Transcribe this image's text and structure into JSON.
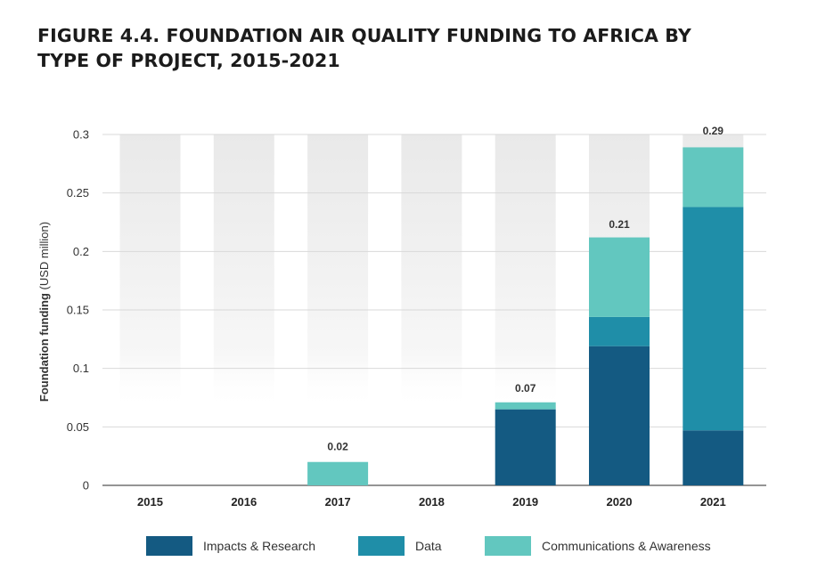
{
  "title": "FIGURE 4.4.  FOUNDATION AIR QUALITY FUNDING TO AFRICA BY TYPE OF PROJECT, 2015-2021",
  "colors": {
    "impacts": "#145a82",
    "data": "#1f8ea8",
    "communications": "#62c7bf",
    "grid": "#d9d9d9",
    "background_band": "#efefef"
  },
  "chart_data": {
    "type": "bar",
    "stacked": true,
    "title": "FIGURE 4.4.  FOUNDATION AIR QUALITY FUNDING TO AFRICA BY TYPE OF PROJECT, 2015-2021",
    "ylabel_bold": "Foundation funding",
    "ylabel_unit": "(USD million)",
    "xlabel": "",
    "categories": [
      "2015",
      "2016",
      "2017",
      "2018",
      "2019",
      "2020",
      "2021"
    ],
    "ylim": [
      0,
      0.3
    ],
    "yticks": [
      0,
      0.05,
      0.1,
      0.15,
      0.2,
      0.25,
      0.3
    ],
    "ytick_labels": [
      "0",
      "0.05",
      "0.1",
      "0.15",
      "0.2",
      "0.25",
      "0.3"
    ],
    "grid": true,
    "legend_position": "bottom",
    "series": [
      {
        "name": "Impacts & Research",
        "color": "#145a82",
        "values": [
          0,
          0,
          0,
          0,
          0.065,
          0.119,
          0.047
        ]
      },
      {
        "name": "Data",
        "color": "#1f8ea8",
        "values": [
          0,
          0,
          0,
          0,
          0,
          0.025,
          0.191
        ]
      },
      {
        "name": "Communications & Awareness",
        "color": "#62c7bf",
        "values": [
          0,
          0,
          0.02,
          0,
          0.006,
          0.068,
          0.051
        ]
      }
    ],
    "totals": [
      null,
      null,
      0.02,
      null,
      0.07,
      0.21,
      0.29
    ],
    "total_labels": [
      "",
      "",
      "0.02",
      "",
      "0.07",
      "0.21",
      "0.29"
    ]
  }
}
